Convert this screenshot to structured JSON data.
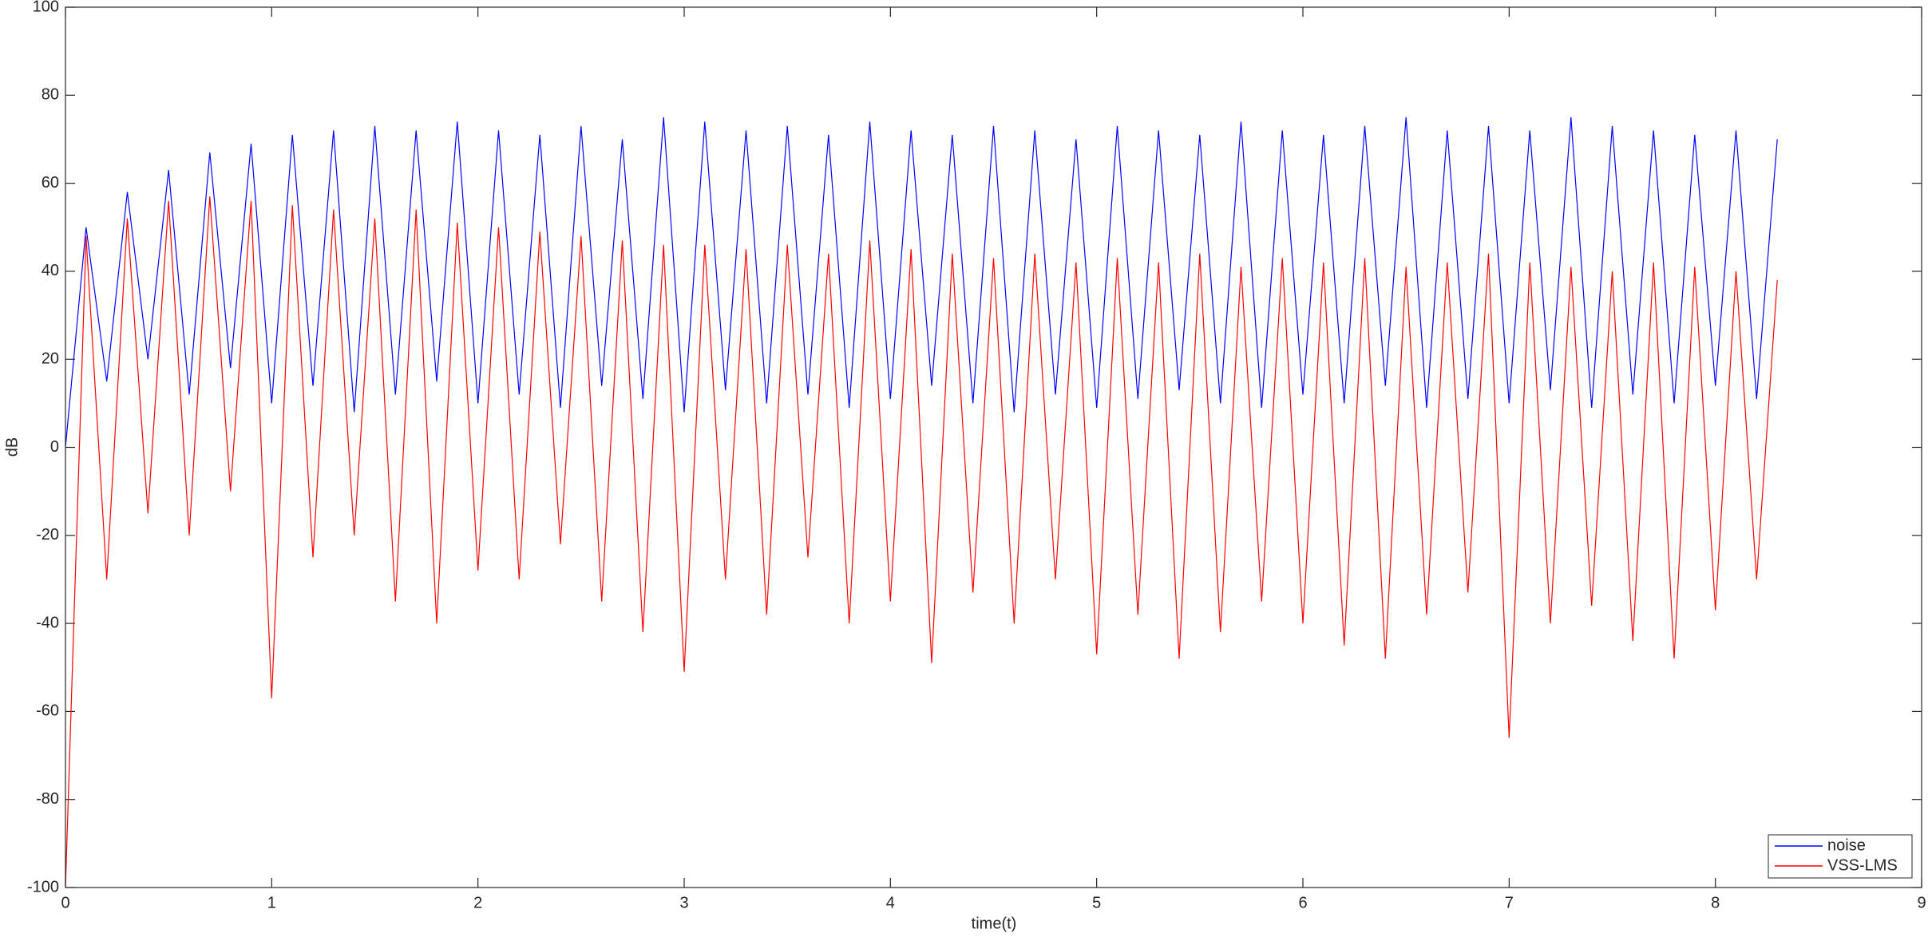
{
  "chart_data": {
    "type": "line",
    "xlabel": "time(t)",
    "ylabel": "dB",
    "x": [
      0,
      0.1,
      0.2,
      0.3,
      0.4,
      0.5,
      0.6,
      0.7,
      0.8,
      0.9,
      1.0,
      1.1,
      1.2,
      1.3,
      1.4,
      1.5,
      1.6,
      1.7,
      1.8,
      1.9,
      2.0,
      2.1,
      2.2,
      2.3,
      2.4,
      2.5,
      2.6,
      2.7,
      2.8,
      2.9,
      3.0,
      3.1,
      3.2,
      3.3,
      3.4,
      3.5,
      3.6,
      3.7,
      3.8,
      3.9,
      4.0,
      4.1,
      4.2,
      4.3,
      4.4,
      4.5,
      4.6,
      4.7,
      4.8,
      4.9,
      5.0,
      5.1,
      5.2,
      5.3,
      5.4,
      5.5,
      5.6,
      5.7,
      5.8,
      5.9,
      6.0,
      6.1,
      6.2,
      6.3,
      6.4,
      6.5,
      6.6,
      6.7,
      6.8,
      6.9,
      7.0,
      7.1,
      7.2,
      7.3,
      7.4,
      7.5,
      7.6,
      7.7,
      7.8,
      7.9,
      8.0,
      8.1,
      8.2,
      8.3
    ],
    "series": [
      {
        "name": "noise",
        "color": "#0000ff",
        "values": [
          0,
          50,
          15,
          58,
          20,
          63,
          12,
          67,
          18,
          69,
          10,
          71,
          14,
          72,
          8,
          73,
          12,
          72,
          15,
          74,
          10,
          72,
          12,
          71,
          9,
          73,
          14,
          70,
          11,
          75,
          8,
          74,
          13,
          72,
          10,
          73,
          12,
          71,
          9,
          74,
          11,
          72,
          14,
          71,
          10,
          73,
          8,
          72,
          12,
          70,
          9,
          73,
          11,
          72,
          13,
          71,
          10,
          74,
          9,
          72,
          12,
          71,
          10,
          73,
          14,
          75,
          9,
          72,
          11,
          73,
          10,
          72,
          13,
          75,
          9,
          73,
          12,
          72,
          10,
          71,
          14,
          72,
          11,
          70
        ]
      },
      {
        "name": "VSS-LMS",
        "color": "#ff0000",
        "values": [
          -100,
          48,
          -30,
          52,
          -15,
          56,
          -20,
          57,
          -10,
          56,
          -57,
          55,
          -25,
          54,
          -20,
          52,
          -35,
          54,
          -40,
          51,
          -28,
          50,
          -30,
          49,
          -22,
          48,
          -35,
          47,
          -42,
          46,
          -51,
          46,
          -30,
          45,
          -38,
          46,
          -25,
          44,
          -40,
          47,
          -35,
          45,
          -49,
          44,
          -33,
          43,
          -40,
          44,
          -30,
          42,
          -47,
          43,
          -38,
          42,
          -48,
          44,
          -42,
          41,
          -35,
          43,
          -40,
          42,
          -45,
          43,
          -48,
          41,
          -38,
          42,
          -33,
          44,
          -66,
          42,
          -40,
          41,
          -36,
          40,
          -44,
          42,
          -48,
          41,
          -37,
          40,
          -30,
          38
        ]
      }
    ],
    "xlim": [
      0,
      9
    ],
    "xticks": [
      0,
      1,
      2,
      3,
      4,
      5,
      6,
      7,
      8,
      9
    ],
    "ylim": [
      -100,
      100
    ],
    "yticks": [
      -100,
      -80,
      -60,
      -40,
      -20,
      0,
      20,
      40,
      60,
      80,
      100
    ],
    "grid": false,
    "legend": "lower right"
  }
}
